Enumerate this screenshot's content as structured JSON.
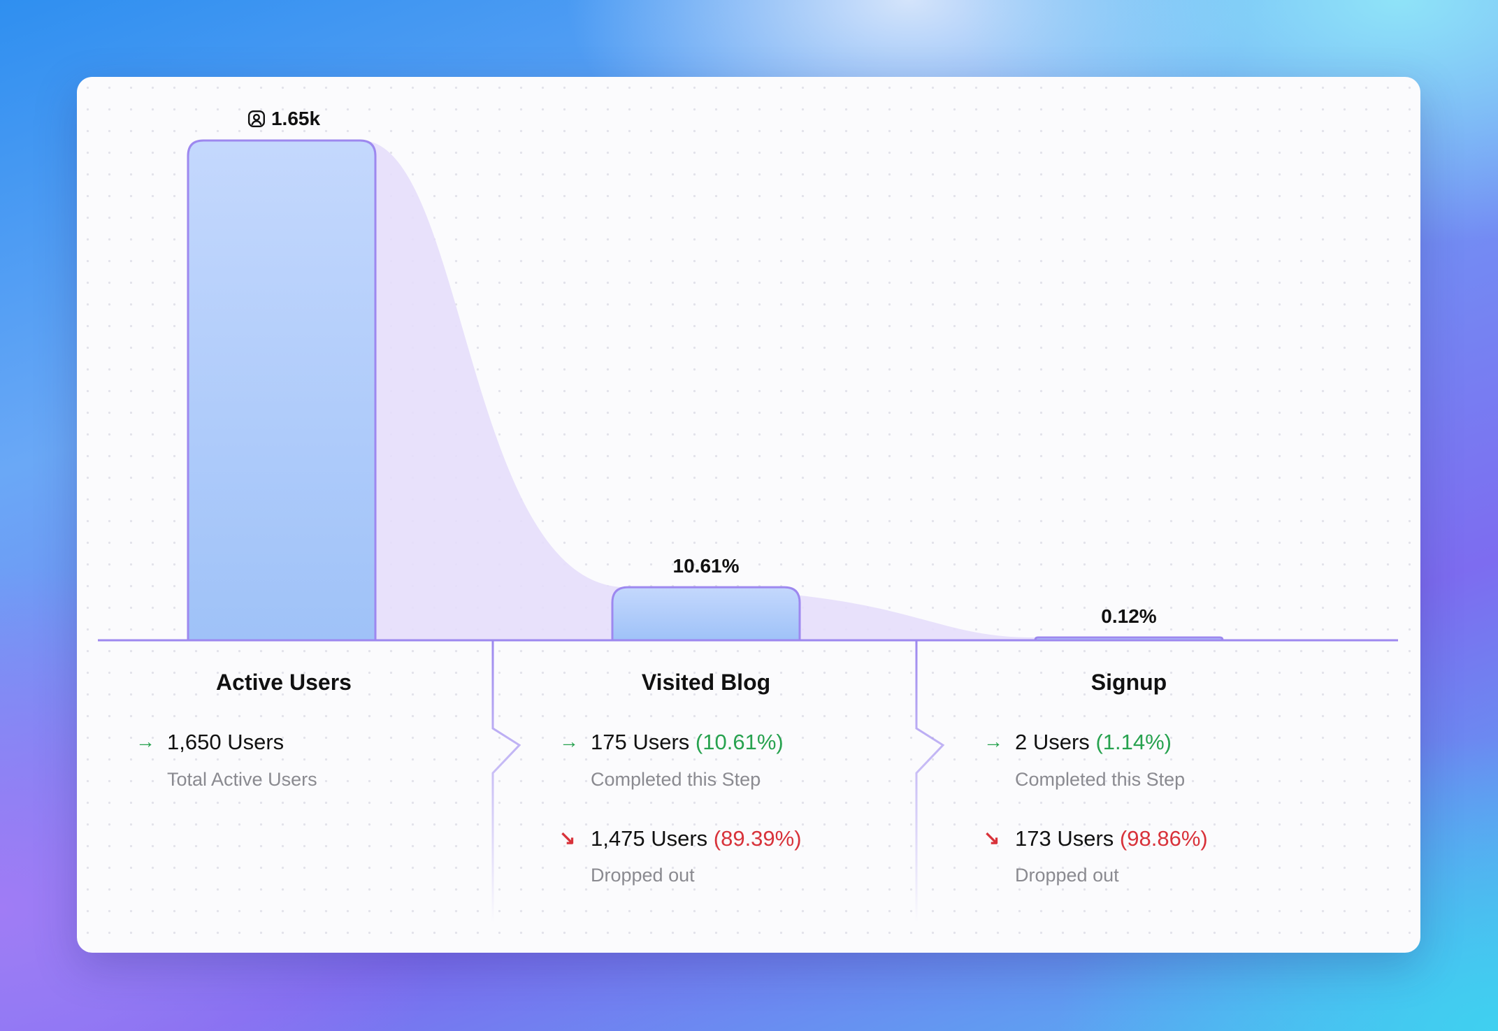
{
  "chart_data": {
    "type": "bar",
    "subtype": "funnel",
    "categories": [
      "Active Users",
      "Visited Blog",
      "Signup"
    ],
    "values": [
      1650,
      175,
      2
    ],
    "bar_labels": [
      "1.65k",
      "10.61%",
      "0.12%"
    ],
    "bar_label_icons": [
      "user-icon",
      null,
      null
    ],
    "colors": {
      "bar_top": "#c4d8fd",
      "bar_bottom": "#9fc2f8",
      "bar_border": "#9d88ef",
      "flow_fill": "#e6defb"
    },
    "grid": false
  },
  "steps": [
    {
      "title": "Active Users",
      "completed": {
        "users": "1,650 Users",
        "pct": "",
        "caption": "Total Active Users"
      }
    },
    {
      "title": "Visited Blog",
      "completed": {
        "users": "175 Users",
        "pct": "(10.61%)",
        "caption": "Completed this Step"
      },
      "dropped": {
        "users": "1,475 Users",
        "pct": "(89.39%)",
        "caption": "Dropped out"
      }
    },
    {
      "title": "Signup",
      "completed": {
        "users": "2 Users",
        "pct": "(1.14%)",
        "caption": "Completed this Step"
      },
      "dropped": {
        "users": "173 Users",
        "pct": "(98.86%)",
        "caption": "Dropped out"
      }
    }
  ],
  "icons": {
    "completed": "→",
    "dropped": "↘"
  }
}
